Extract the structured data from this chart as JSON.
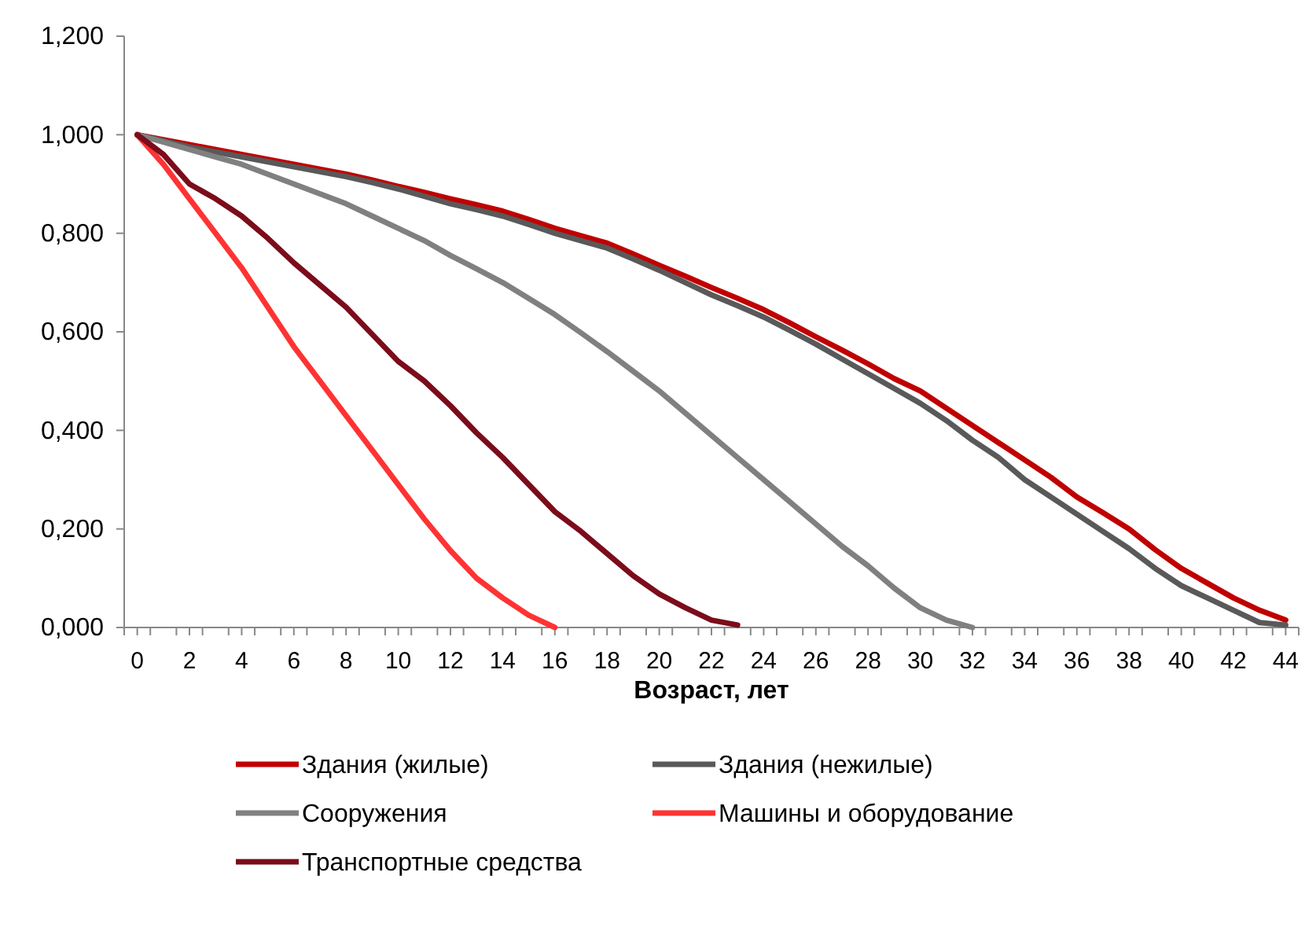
{
  "chart_data": {
    "type": "line",
    "xlabel": "Возраст, лет",
    "x": [
      0,
      1,
      2,
      3,
      4,
      5,
      6,
      7,
      8,
      9,
      10,
      11,
      12,
      13,
      14,
      15,
      16,
      17,
      18,
      19,
      20,
      21,
      22,
      23,
      24,
      25,
      26,
      27,
      28,
      29,
      30,
      31,
      32,
      33,
      34,
      35,
      36,
      37,
      38,
      39,
      40,
      41,
      42,
      43,
      44
    ],
    "xlim": [
      -0.5,
      44.5
    ],
    "xticks": [
      0,
      2,
      4,
      6,
      8,
      10,
      12,
      14,
      16,
      18,
      20,
      22,
      24,
      26,
      28,
      30,
      32,
      34,
      36,
      38,
      40,
      42,
      44,
      {
        "value": -0.5,
        "label": null
      },
      {
        "value": 0.5,
        "label": null
      },
      {
        "value": 1.5,
        "label": null
      },
      {
        "value": 2.5,
        "label": null
      },
      {
        "value": 3.5,
        "label": null
      },
      {
        "value": 4.5,
        "label": null
      },
      {
        "value": 5.5,
        "label": null
      },
      {
        "value": 6.5,
        "label": null
      },
      {
        "value": 7.5,
        "label": null
      },
      {
        "value": 8.5,
        "label": null
      },
      {
        "value": 9.5,
        "label": null
      },
      {
        "value": 10.5,
        "label": null
      },
      {
        "value": 11.5,
        "label": null
      },
      {
        "value": 12.5,
        "label": null
      },
      {
        "value": 13.5,
        "label": null
      },
      {
        "value": 14.5,
        "label": null
      },
      {
        "value": 15.5,
        "label": null
      },
      {
        "value": 16.5,
        "label": null
      },
      {
        "value": 17.5,
        "label": null
      },
      {
        "value": 18.5,
        "label": null
      },
      {
        "value": 19.5,
        "label": null
      },
      {
        "value": 20.5,
        "label": null
      },
      {
        "value": 21.5,
        "label": null
      },
      {
        "value": 22.5,
        "label": null
      },
      {
        "value": 23.5,
        "label": null
      },
      {
        "value": 24.5,
        "label": null
      },
      {
        "value": 25.5,
        "label": null
      },
      {
        "value": 26.5,
        "label": null
      },
      {
        "value": 27.5,
        "label": null
      },
      {
        "value": 28.5,
        "label": null
      },
      {
        "value": 29.5,
        "label": null
      },
      {
        "value": 30.5,
        "label": null
      },
      {
        "value": 31.5,
        "label": null
      },
      {
        "value": 32.5,
        "label": null
      },
      {
        "value": 33.5,
        "label": null
      },
      {
        "value": 34.5,
        "label": null
      },
      {
        "value": 35.5,
        "label": null
      },
      {
        "value": 36.5,
        "label": null
      },
      {
        "value": 37.5,
        "label": null
      },
      {
        "value": 38.5,
        "label": null
      },
      {
        "value": 39.5,
        "label": null
      },
      {
        "value": 40.5,
        "label": null
      },
      {
        "value": 41.5,
        "label": null
      },
      {
        "value": 42.5,
        "label": null
      },
      {
        "value": 43.5,
        "label": null
      },
      {
        "value": 44.5,
        "label": null
      }
    ],
    "ylim": [
      0,
      1.2
    ],
    "yticks": [
      {
        "value": 0,
        "label": "0,000"
      },
      {
        "value": 0.2,
        "label": "0,200"
      },
      {
        "value": 0.4,
        "label": "0,400"
      },
      {
        "value": 0.6,
        "label": "0,600"
      },
      {
        "value": 0.8,
        "label": "0,800"
      },
      {
        "value": 1,
        "label": "1,000"
      },
      {
        "value": 1.2,
        "label": "1,200"
      }
    ],
    "grid": false,
    "legend": "bottom",
    "marker": "none",
    "line_style": "solid",
    "series": [
      {
        "name": "Здания (жилые)",
        "color": "#c00000",
        "values": [
          1,
          0.99,
          0.98,
          0.97,
          0.96,
          0.95,
          0.94,
          0.93,
          0.92,
          0.908,
          0.895,
          0.883,
          0.87,
          0.858,
          0.845,
          0.828,
          0.81,
          0.795,
          0.78,
          0.758,
          0.735,
          0.713,
          0.69,
          0.668,
          0.645,
          0.618,
          0.59,
          0.563,
          0.535,
          0.505,
          0.48,
          0.445,
          0.41,
          0.375,
          0.34,
          0.305,
          0.265,
          0.233,
          0.2,
          0.158,
          0.12,
          0.09,
          0.06,
          0.035,
          0.015
        ]
      },
      {
        "name": "Здания (нежилые)",
        "color": "#595959",
        "values": [
          1,
          0.988,
          0.975,
          0.965,
          0.955,
          0.945,
          0.935,
          0.925,
          0.915,
          0.903,
          0.89,
          0.875,
          0.86,
          0.848,
          0.835,
          0.818,
          0.8,
          0.785,
          0.77,
          0.748,
          0.725,
          0.7,
          0.675,
          0.653,
          0.63,
          0.603,
          0.575,
          0.545,
          0.515,
          0.485,
          0.455,
          0.42,
          0.38,
          0.345,
          0.3,
          0.265,
          0.23,
          0.195,
          0.16,
          0.12,
          0.085,
          0.06,
          0.035,
          0.01,
          0.005
        ]
      },
      {
        "name": "Сооружения",
        "color": "#808080",
        "values": [
          1,
          0.985,
          0.97,
          0.955,
          0.94,
          0.92,
          0.9,
          0.88,
          0.86,
          0.835,
          0.81,
          0.785,
          0.755,
          0.728,
          0.7,
          0.668,
          0.635,
          0.598,
          0.56,
          0.52,
          0.48,
          0.435,
          0.39,
          0.345,
          0.3,
          0.255,
          0.21,
          0.165,
          0.125,
          0.08,
          0.04,
          0.015,
          0,
          null,
          null,
          null,
          null,
          null,
          null,
          null,
          null,
          null,
          null,
          null,
          null
        ]
      },
      {
        "name": "Машины и оборудование",
        "color": "#ff3333",
        "values": [
          1,
          0.94,
          0.87,
          0.8,
          0.73,
          0.65,
          0.57,
          0.5,
          0.43,
          0.36,
          0.29,
          0.22,
          0.156,
          0.1,
          0.06,
          0.025,
          0,
          null,
          null,
          null,
          null,
          null,
          null,
          null,
          null,
          null,
          null,
          null,
          null,
          null,
          null,
          null,
          null,
          null,
          null,
          null,
          null,
          null,
          null,
          null,
          null,
          null,
          null,
          null,
          null
        ]
      },
      {
        "name": "Транспортные средства",
        "color": "#7b0c1b",
        "values": [
          1,
          0.96,
          0.9,
          0.87,
          0.835,
          0.79,
          0.74,
          0.695,
          0.65,
          0.595,
          0.54,
          0.5,
          0.45,
          0.395,
          0.345,
          0.29,
          0.235,
          0.195,
          0.15,
          0.105,
          0.068,
          0.04,
          0.015,
          0.005,
          null,
          null,
          null,
          null,
          null,
          null,
          null,
          null,
          null,
          null,
          null,
          null,
          null,
          null,
          null,
          null,
          null,
          null,
          null,
          null,
          null
        ]
      }
    ]
  }
}
